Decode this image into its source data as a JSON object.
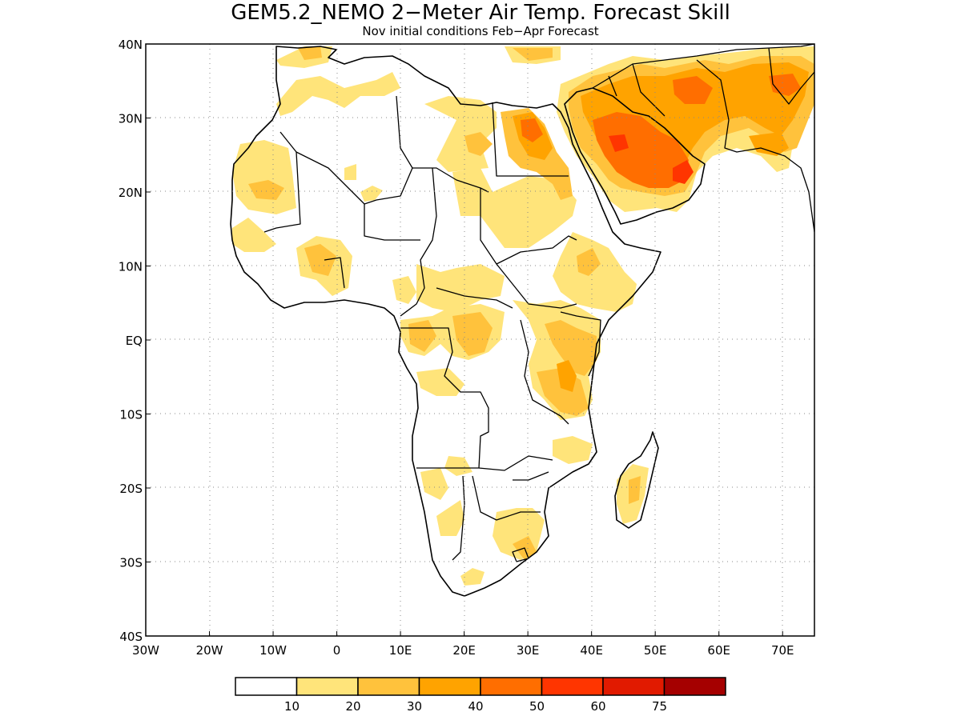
{
  "title": "GEM5.2_NEMO 2−Meter Air Temp. Forecast Skill",
  "subtitle": "Nov initial conditions  Feb−Apr Forecast",
  "map": {
    "lon_range": [
      -30,
      75
    ],
    "lat_range": [
      -40,
      40
    ],
    "x_ticks": [
      "30W",
      "20W",
      "10W",
      "0",
      "10E",
      "20E",
      "30E",
      "40E",
      "50E",
      "60E",
      "70E"
    ],
    "y_ticks": [
      "40N",
      "30N",
      "20N",
      "10N",
      "EQ",
      "10S",
      "20S",
      "30S",
      "40S"
    ],
    "grid": true,
    "colors": [
      "#ffffff",
      "#ffe47a",
      "#ffc23c",
      "#ffa300",
      "#ff6e00",
      "#ff3500",
      "#e11a00",
      "#a50000"
    ]
  },
  "colorbar": {
    "labels": [
      "10",
      "20",
      "30",
      "40",
      "50",
      "60",
      "75"
    ],
    "colors": [
      "#ffffff",
      "#ffe47a",
      "#ffc23c",
      "#ffa300",
      "#ff6e00",
      "#ff3500",
      "#e11a00",
      "#a50000"
    ]
  }
}
